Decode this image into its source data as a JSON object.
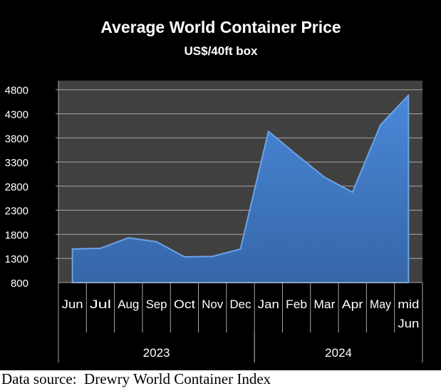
{
  "chart_data": {
    "type": "area",
    "title": "Average World Container Price",
    "subtitle": "US$/40ft box",
    "categories": [
      "Jun",
      "Jul",
      "Aug",
      "Sep",
      "Oct",
      "Nov",
      "Dec",
      "Jan",
      "Feb",
      "Mar",
      "Apr",
      "May",
      "mid Jun"
    ],
    "groups": [
      {
        "label": "2023",
        "span": 7
      },
      {
        "label": "2024",
        "span": 6
      }
    ],
    "values": [
      1495,
      1510,
      1727,
      1648,
      1333,
      1342,
      1495,
      3936,
      3453,
      2985,
      2674,
      4069,
      4686
    ],
    "ylim": [
      800,
      4800
    ],
    "yticks": [
      800,
      1300,
      1800,
      2300,
      2800,
      3300,
      3800,
      4300,
      4800
    ],
    "grid": true,
    "legend": "none",
    "colors": {
      "fill": "#3d78c4",
      "plot_bg": "#404040",
      "background": "#000000",
      "grid": "#a6a6a6",
      "text": "#ffffff"
    }
  },
  "footer": {
    "source": "Data source:  Drewry World Container Index"
  }
}
